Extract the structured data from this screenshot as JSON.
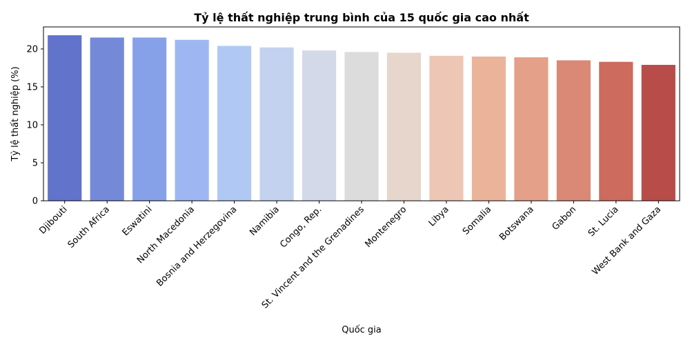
{
  "chart_data": {
    "type": "bar",
    "title": "Tỷ lệ thất nghiệp trung bình của 15 quốc gia cao nhất",
    "xlabel": "Quốc gia",
    "ylabel": "Tỷ lệ thất nghiệp (%)",
    "ylim": [
      0,
      22.9
    ],
    "yticks": [
      0,
      5,
      10,
      15,
      20
    ],
    "grid": false,
    "legend": "none",
    "categories": [
      "Djibouti",
      "South Africa",
      "Eswatini",
      "North Macedonia",
      "Bosnia and Herzegovina",
      "Namibia",
      "Congo, Rep.",
      "St. Vincent and the Grenadines",
      "Montenegro",
      "Libya",
      "Somalia",
      "Botswana",
      "Gabon",
      "St. Lucia",
      "West Bank and Gaza"
    ],
    "values": [
      21.8,
      21.5,
      21.5,
      21.2,
      20.4,
      20.2,
      19.8,
      19.6,
      19.5,
      19.1,
      19.0,
      18.9,
      18.5,
      18.3,
      17.9
    ],
    "colors": [
      "#6173cb",
      "#748ad9",
      "#87a1e8",
      "#9eb7f2",
      "#b0c9f4",
      "#c3d2ef",
      "#d3d9e9",
      "#dcdcdc",
      "#e6d6cc",
      "#edc6b5",
      "#ecb39b",
      "#e4a088",
      "#d98975",
      "#cc6b5e",
      "#b74c48"
    ]
  }
}
